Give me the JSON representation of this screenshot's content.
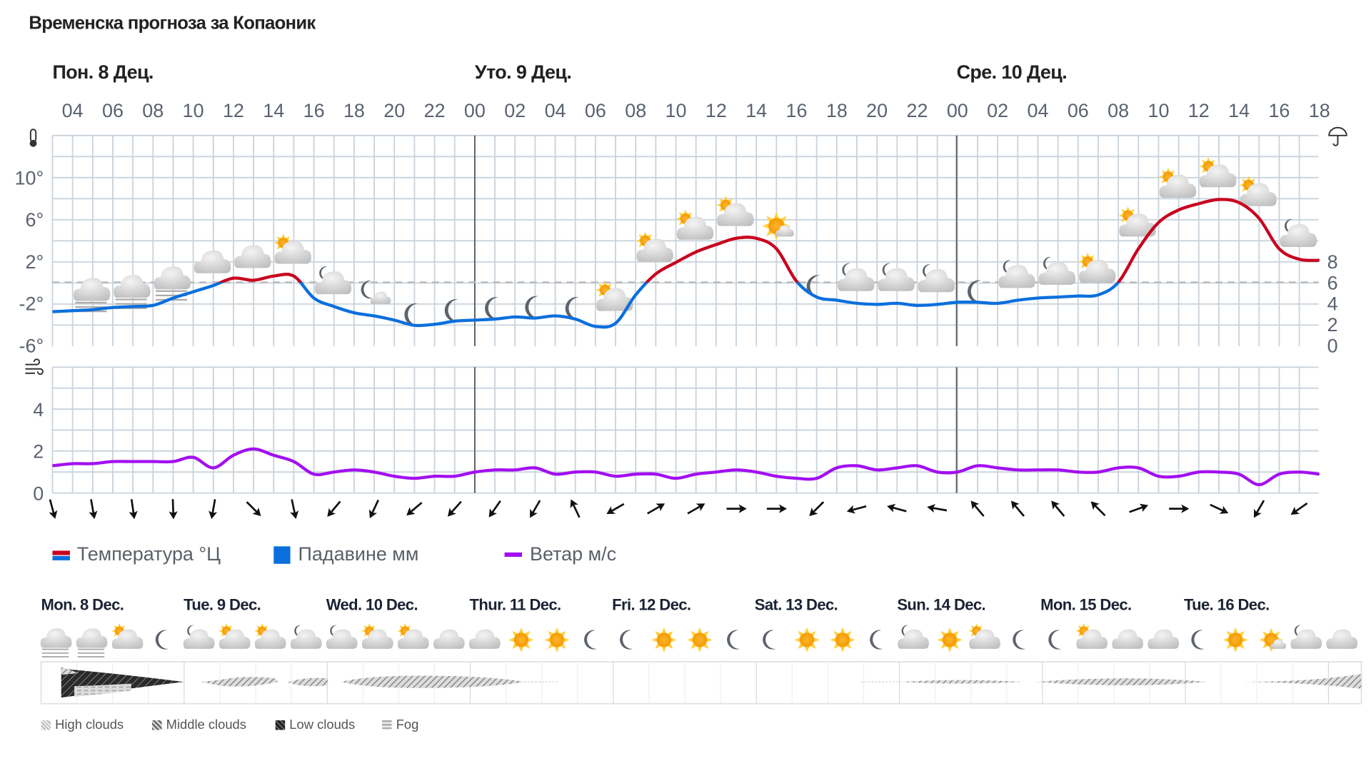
{
  "title": "Временска прогноза за Копаоник",
  "day_headers": [
    "Пон. 8 Дец.",
    "Уто. 9 Дец.",
    "Сре. 10 Дец."
  ],
  "colors": {
    "temp_above_zero": "#c8001e",
    "temp_below_zero": "#0a6fdc",
    "wind": "#a20ff0",
    "precipitation": "#0a6fdc",
    "grid": "#c9d3dc",
    "day_divider": "#555a60"
  },
  "legend": {
    "temperature": "Температура °Ц",
    "precipitation": "Падавине мм",
    "wind": "Ветар м/с"
  },
  "icons": {
    "temperature_axis": "thermometer-icon",
    "wind_axis": "wind-icon",
    "precip_axis": "umbrella-icon"
  },
  "chart_data": [
    {
      "type": "line",
      "x_ticks": [
        "04",
        "06",
        "08",
        "10",
        "12",
        "14",
        "16",
        "18",
        "20",
        "22",
        "00",
        "02",
        "04",
        "06",
        "08",
        "10",
        "12",
        "14",
        "16",
        "18",
        "20",
        "22",
        "00",
        "02",
        "04",
        "06",
        "08",
        "10",
        "12",
        "14",
        "16",
        "18"
      ],
      "y_ticks_left": [
        "10°",
        "6°",
        "2°",
        "-2°",
        "-6°"
      ],
      "y_ticks_left_values": [
        10,
        6,
        2,
        -2,
        -6
      ],
      "y_ticks_right": [
        "8",
        "6",
        "4",
        "2",
        "0"
      ],
      "ylim_left": [
        -6,
        14
      ],
      "ylim_right": [
        0,
        10
      ],
      "zero_line": "dashed",
      "x_start": "Пон. 8 Дец. 03:00",
      "x_step_hours": 1,
      "series": [
        {
          "name": "Температура °Ц",
          "unit": "°C",
          "values": [
            -2.8,
            -2.7,
            -2.6,
            -2.4,
            -2.3,
            -2.2,
            -1.5,
            -0.9,
            -0.3,
            0.4,
            0.2,
            0.6,
            0.6,
            -1.5,
            -2.3,
            -2.9,
            -3.2,
            -3.6,
            -4.1,
            -4.0,
            -3.7,
            -3.6,
            -3.5,
            -3.3,
            -3.4,
            -3.2,
            -3.5,
            -4.2,
            -3.9,
            -1.2,
            0.8,
            1.9,
            2.9,
            3.6,
            4.2,
            4.2,
            3.2,
            0.1,
            -1.4,
            -1.7,
            -2.0,
            -2.1,
            -2.0,
            -2.2,
            -2.1,
            -1.9,
            -1.9,
            -2.0,
            -1.7,
            -1.5,
            -1.4,
            -1.3,
            -1.2,
            0.0,
            3.2,
            5.7,
            6.9,
            7.5,
            7.9,
            7.6,
            6.1,
            3.2,
            2.2,
            2.1
          ]
        },
        {
          "name": "Падавине мм",
          "unit": "mm",
          "values": []
        }
      ],
      "weather_icons": [
        "fog",
        "fog",
        "fog",
        "cloud",
        "cloud",
        "partly-sunny",
        "partly-moon",
        "partly-moon-small",
        "moon",
        "moon",
        "moon",
        "moon",
        "moon",
        "partly-sunny",
        "partly-sunny",
        "partly-sunny",
        "partly-sunny",
        "sun-small-cloud",
        "moon",
        "partly-moon",
        "partly-moon",
        "partly-moon",
        "moon",
        "partly-moon",
        "partly-moon",
        "partly-sunny",
        "partly-sunny",
        "partly-sunny",
        "partly-sunny",
        "partly-sunny",
        "partly-moon"
      ]
    },
    {
      "type": "line",
      "y_ticks": [
        "4",
        "2",
        "0"
      ],
      "y_ticks_values": [
        4,
        2,
        0
      ],
      "ylim": [
        0,
        6
      ],
      "series": [
        {
          "name": "Ветар м/с",
          "unit": "m/s",
          "values": [
            1.3,
            1.4,
            1.4,
            1.5,
            1.5,
            1.5,
            1.5,
            1.7,
            1.2,
            1.8,
            2.1,
            1.8,
            1.5,
            0.9,
            1.0,
            1.1,
            1.0,
            0.8,
            0.7,
            0.8,
            0.8,
            1.0,
            1.1,
            1.1,
            1.2,
            0.9,
            1.0,
            1.0,
            0.8,
            0.9,
            0.9,
            0.7,
            0.9,
            1.0,
            1.1,
            1.0,
            0.8,
            0.7,
            0.7,
            1.2,
            1.3,
            1.1,
            1.2,
            1.3,
            1.0,
            1.0,
            1.3,
            1.2,
            1.1,
            1.1,
            1.1,
            1.0,
            1.0,
            1.2,
            1.2,
            0.8,
            0.8,
            1.0,
            1.0,
            0.9,
            0.4,
            0.9,
            1.0,
            0.9
          ]
        }
      ],
      "wind_arrow_rotation_deg": [
        165,
        170,
        172,
        178,
        190,
        135,
        168,
        220,
        205,
        230,
        222,
        215,
        210,
        335,
        240,
        60,
        60,
        90,
        90,
        225,
        255,
        285,
        280,
        320,
        320,
        320,
        315,
        70,
        90,
        115,
        210,
        235
      ]
    }
  ],
  "outlook": {
    "days": [
      "Mon. 8 Dec.",
      "Tue. 9 Dec.",
      "Wed. 10 Dec.",
      "Thur. 11 Dec.",
      "Fri. 12 Dec.",
      "Sat. 13 Dec.",
      "Sun. 14 Dec.",
      "Mon. 15 Dec.",
      "Tue. 16 Dec."
    ],
    "icons": [
      "fog",
      "fog",
      "partly-sunny",
      "moon",
      "partly-moon",
      "partly-sunny",
      "partly-sunny",
      "partly-moon",
      "partly-moon",
      "partly-sunny",
      "partly-sunny",
      "cloud",
      "cloud",
      "sun",
      "sun",
      "moon",
      "moon",
      "sun",
      "sun",
      "moon",
      "moon",
      "sun",
      "sun",
      "moon",
      "partly-moon",
      "sun",
      "partly-sunny",
      "moon",
      "moon",
      "partly-sunny",
      "cloud",
      "cloud",
      "moon",
      "sun",
      "sun-small-cloud",
      "partly-moon",
      "cloud"
    ],
    "cloud_legend": [
      "High clouds",
      "Middle clouds",
      "Low clouds",
      "Fog"
    ]
  }
}
